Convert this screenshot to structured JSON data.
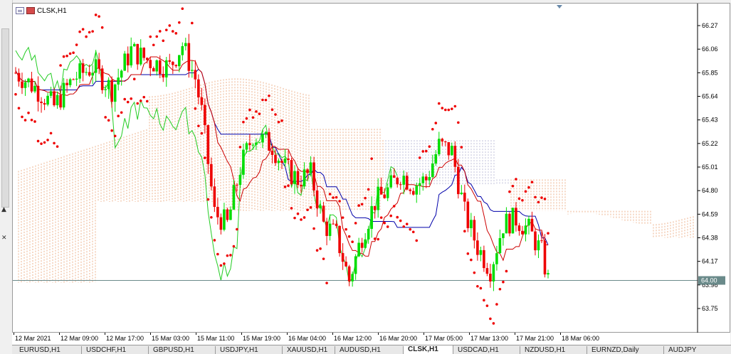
{
  "window": {
    "symbol_title": "CLSK,H1",
    "current_price": "64.00"
  },
  "price_axis": {
    "labels": [
      "66.27",
      "66.06",
      "65.85",
      "65.64",
      "65.43",
      "65.22",
      "65.01",
      "64.80",
      "64.59",
      "64.38",
      "64.17",
      "63.96",
      "63.75"
    ]
  },
  "time_axis": {
    "labels": [
      "12 Mar 2021",
      "12 Mar 09:00",
      "12 Mar 17:00",
      "15 Mar 03:00",
      "15 Mar 11:00",
      "15 Mar 19:00",
      "16 Mar 04:00",
      "16 Mar 12:00",
      "16 Mar 20:00",
      "17 Mar 05:00",
      "17 Mar 13:00",
      "17 Mar 21:00",
      "18 Mar 06:00"
    ]
  },
  "tabs": [
    {
      "label": "EURUSD,H1",
      "active": false
    },
    {
      "label": "USDCHF,H1",
      "active": false
    },
    {
      "label": "GBPUSD,H1",
      "active": false
    },
    {
      "label": "USDJPY,H1",
      "active": false
    },
    {
      "label": "XAUUSD,H1",
      "active": false
    },
    {
      "label": "AUDUSD,H1",
      "active": false
    },
    {
      "label": "CLSK,H1",
      "active": true
    },
    {
      "label": "USDCAD,H1",
      "active": false
    },
    {
      "label": "NZDUSD,H1",
      "active": false
    },
    {
      "label": "EURNZD,Daily",
      "active": false
    },
    {
      "label": "AUDJPY",
      "active": false
    }
  ],
  "colors": {
    "bull": "#00dd00",
    "bear": "#ee0000",
    "kijun": "#0000aa",
    "tenkan": "#cc0000",
    "chikou": "#22cc22",
    "cloud_bull": "#e8a070",
    "cloud_bear": "#b0b0d0",
    "psar": "#ee0000",
    "price_line": "#6a8a8a"
  }
}
